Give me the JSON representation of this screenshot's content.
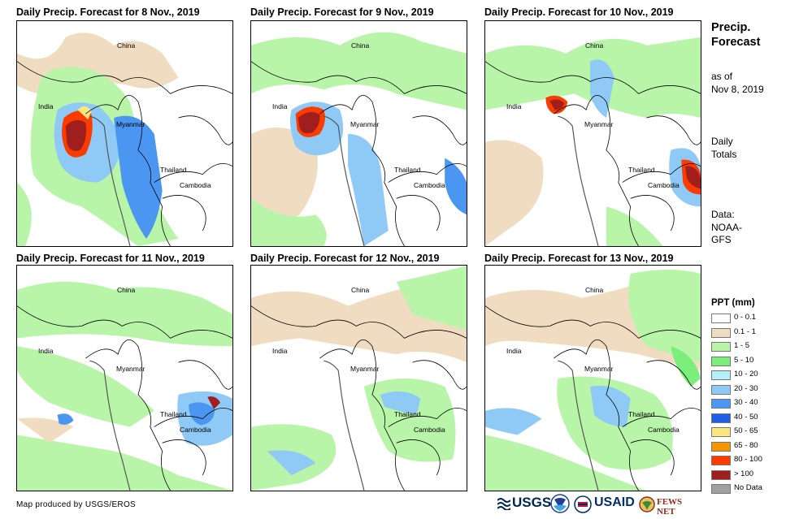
{
  "panels": [
    {
      "title": "Daily Precip. Forecast for 8 Nov., 2019",
      "labels": {
        "china": "China",
        "india": "India",
        "myanmar": "Myanmar",
        "thailand": "Thailand",
        "cambodia": "Cambodia"
      }
    },
    {
      "title": "Daily Precip. Forecast for 9 Nov., 2019",
      "labels": {
        "china": "China",
        "india": "India",
        "myanmar": "Myanmar",
        "thailand": "Thailand",
        "cambodia": "Cambodia"
      }
    },
    {
      "title": "Daily Precip. Forecast for 10 Nov., 2019",
      "labels": {
        "china": "China",
        "india": "India",
        "myanmar": "Myanmar",
        "thailand": "Thailand",
        "cambodia": "Cambodia"
      }
    },
    {
      "title": "Daily Precip. Forecast for 11 Nov., 2019",
      "labels": {
        "china": "China",
        "india": "India",
        "myanmar": "Myanmar",
        "thailand": "Thailand",
        "cambodia": "Cambodia"
      }
    },
    {
      "title": "Daily Precip. Forecast for 12 Nov., 2019",
      "labels": {
        "china": "China",
        "india": "India",
        "myanmar": "Myanmar",
        "thailand": "Thailand",
        "cambodia": "Cambodia"
      }
    },
    {
      "title": "Daily Precip. Forecast for 13 Nov., 2019",
      "labels": {
        "china": "China",
        "india": "India",
        "myanmar": "Myanmar",
        "thailand": "Thailand",
        "cambodia": "Cambodia"
      }
    }
  ],
  "side": {
    "title_line1": "Precip.",
    "title_line2": "Forecast",
    "asof_line1": "as of",
    "asof_line2": "Nov 8, 2019",
    "daily_line1": "Daily",
    "daily_line2": "Totals",
    "data_line1": "Data:",
    "data_line2": "NOAA-",
    "data_line3": "GFS"
  },
  "legend": {
    "title": "PPT (mm)",
    "items": [
      {
        "label": "0 - 0.1",
        "color": "#ffffff"
      },
      {
        "label": "0.1 - 1",
        "color": "#f0dcc0"
      },
      {
        "label": "1 - 5",
        "color": "#b8f5a8"
      },
      {
        "label": "5 - 10",
        "color": "#7bee7b"
      },
      {
        "label": "10 - 20",
        "color": "#b4f0fa"
      },
      {
        "label": "20 - 30",
        "color": "#8ecaf5"
      },
      {
        "label": "30 - 40",
        "color": "#4a96f0"
      },
      {
        "label": "40 - 50",
        "color": "#1e5fe6"
      },
      {
        "label": "50 - 65",
        "color": "#fae67a"
      },
      {
        "label": "65 - 80",
        "color": "#f59600"
      },
      {
        "label": "80 - 100",
        "color": "#fa3c00"
      },
      {
        "label": "> 100",
        "color": "#a01e1e"
      },
      {
        "label": "No Data",
        "color": "#a0a0a0"
      }
    ]
  },
  "footer": {
    "credit": "Map produced by USGS/EROS",
    "usgs": "USGS",
    "usaid": "USAID",
    "fewsnet": "FEWS NET"
  }
}
